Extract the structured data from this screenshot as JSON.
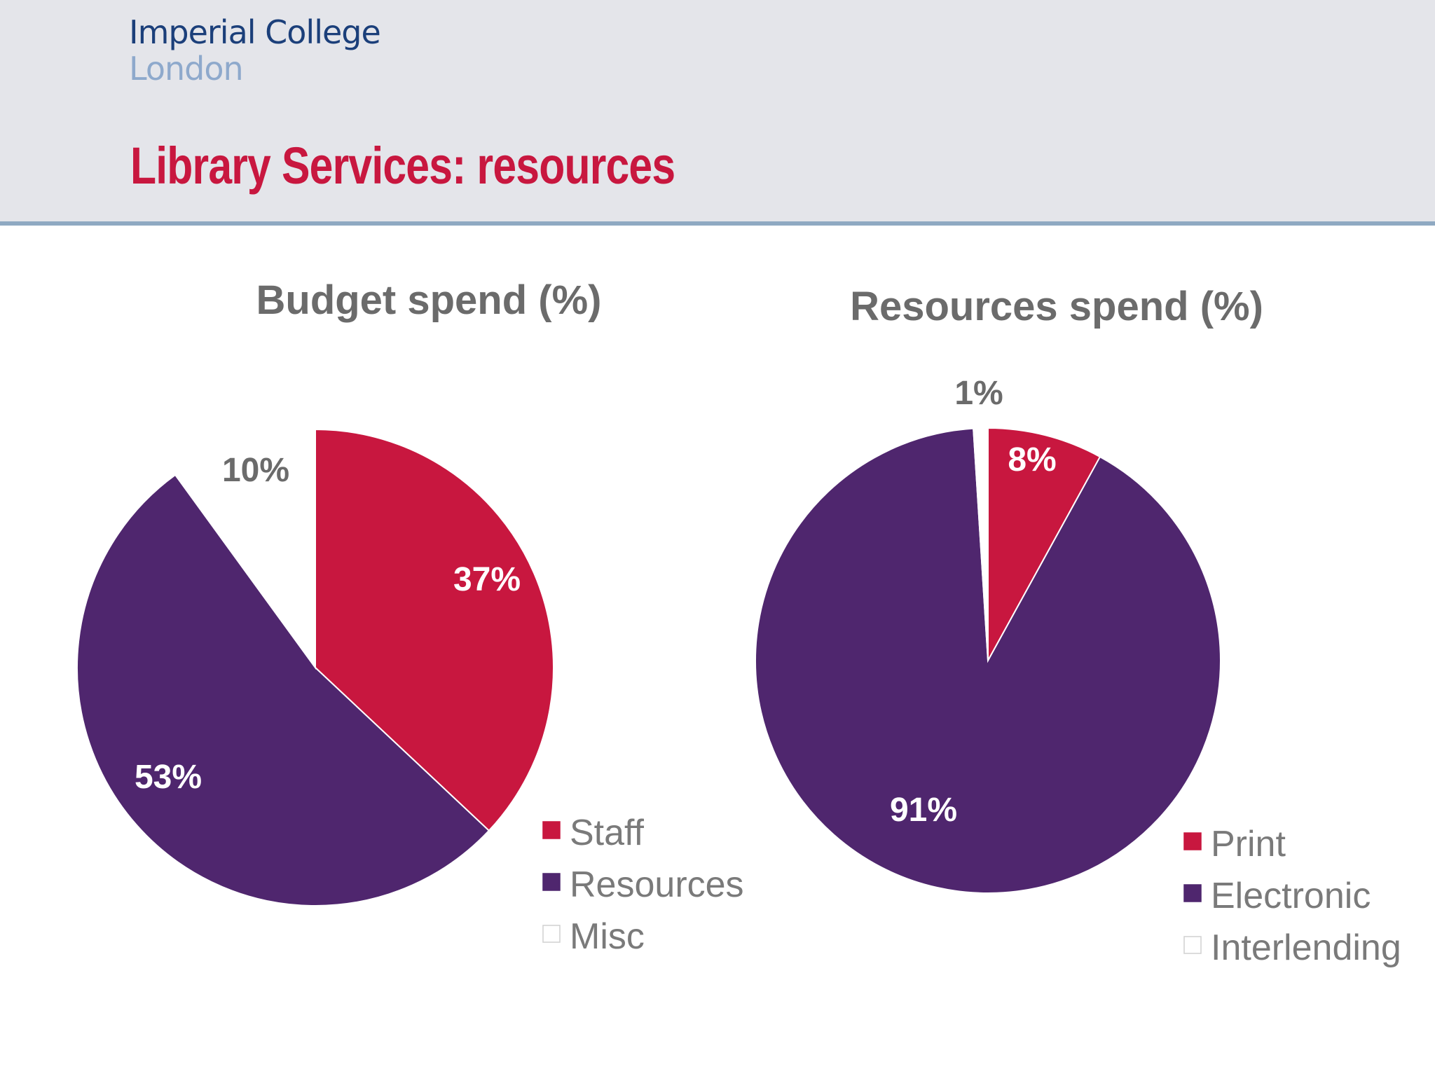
{
  "header": {
    "logo_line1": "Imperial College",
    "logo_line2": "London",
    "title": "Library Services: resources"
  },
  "colors": {
    "red": "#c8173f",
    "purple": "#4f266e",
    "white": "#ffffff",
    "header_bg": "#e4e5ea",
    "header_rule": "#8fa9c2"
  },
  "chart_data": [
    {
      "type": "pie",
      "title": "Budget spend (%)",
      "categories": [
        "Staff",
        "Resources",
        "Misc"
      ],
      "values": [
        37,
        53,
        10
      ],
      "labels": [
        "37%",
        "53%",
        "10%"
      ],
      "colors": [
        "#c8173f",
        "#4f266e",
        "#ffffff"
      ],
      "label_colors": [
        "#ffffff",
        "#ffffff",
        "#6b6b6b"
      ],
      "start_angle_deg": 0,
      "direction": "clockwise",
      "legend_position": "bottom-right"
    },
    {
      "type": "pie",
      "title": "Resources spend (%)",
      "categories": [
        "Print",
        "Electronic",
        "Interlending"
      ],
      "values": [
        8,
        91,
        1
      ],
      "labels": [
        "8%",
        "91%",
        "1%"
      ],
      "colors": [
        "#c8173f",
        "#4f266e",
        "#ffffff"
      ],
      "label_colors": [
        "#ffffff",
        "#ffffff",
        "#6b6b6b"
      ],
      "start_angle_deg": 0,
      "direction": "clockwise",
      "legend_position": "bottom-right"
    }
  ]
}
